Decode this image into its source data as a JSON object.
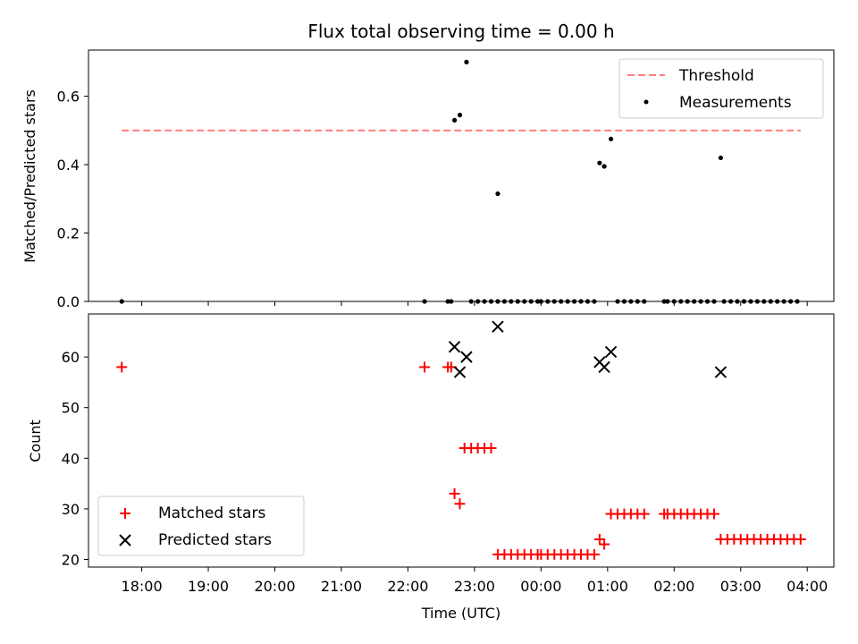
{
  "chart_data": [
    {
      "type": "scatter",
      "title": "Flux total observing time = 0.00 h",
      "ylabel": "Matched/Predicted stars",
      "xlabel": "",
      "ylim": [
        0,
        0.735
      ],
      "yticks": [
        0.0,
        0.2,
        0.4,
        0.6
      ],
      "ytick_labels": [
        "0.0",
        "0.2",
        "0.4",
        "0.6"
      ],
      "grid": false,
      "legend_position": "top-right",
      "threshold": {
        "name": "Threshold",
        "y": 0.5,
        "x_range": [
          17.7,
          27.9
        ],
        "color": "#ff7f7f",
        "style": "dashed"
      },
      "series": [
        {
          "name": "Measurements",
          "color": "#000000",
          "marker": "dot",
          "points": [
            [
              17.7,
              0.0
            ],
            [
              22.25,
              0.0
            ],
            [
              22.6,
              0.0
            ],
            [
              22.65,
              0.0
            ],
            [
              22.7,
              0.53
            ],
            [
              22.78,
              0.545
            ],
            [
              22.88,
              0.7
            ],
            [
              23.35,
              0.315
            ],
            [
              22.95,
              0.0
            ],
            [
              23.05,
              0.0
            ],
            [
              23.15,
              0.0
            ],
            [
              23.25,
              0.0
            ],
            [
              23.35,
              0.0
            ],
            [
              23.45,
              0.0
            ],
            [
              23.55,
              0.0
            ],
            [
              23.65,
              0.0
            ],
            [
              23.75,
              0.0
            ],
            [
              23.85,
              0.0
            ],
            [
              23.95,
              0.0
            ],
            [
              24.0,
              0.0
            ],
            [
              24.1,
              0.0
            ],
            [
              24.2,
              0.0
            ],
            [
              24.3,
              0.0
            ],
            [
              24.4,
              0.0
            ],
            [
              24.5,
              0.0
            ],
            [
              24.6,
              0.0
            ],
            [
              24.7,
              0.0
            ],
            [
              24.8,
              0.0
            ],
            [
              24.88,
              0.405
            ],
            [
              24.95,
              0.395
            ],
            [
              25.05,
              0.475
            ],
            [
              25.15,
              0.0
            ],
            [
              25.25,
              0.0
            ],
            [
              25.35,
              0.0
            ],
            [
              25.45,
              0.0
            ],
            [
              25.55,
              0.0
            ],
            [
              25.85,
              0.0
            ],
            [
              25.9,
              0.0
            ],
            [
              26.0,
              0.0
            ],
            [
              26.1,
              0.0
            ],
            [
              26.2,
              0.0
            ],
            [
              26.3,
              0.0
            ],
            [
              26.4,
              0.0
            ],
            [
              26.5,
              0.0
            ],
            [
              26.6,
              0.0
            ],
            [
              26.7,
              0.42
            ],
            [
              26.75,
              0.0
            ],
            [
              26.85,
              0.0
            ],
            [
              26.95,
              0.0
            ],
            [
              27.05,
              0.0
            ],
            [
              27.15,
              0.0
            ],
            [
              27.25,
              0.0
            ],
            [
              27.35,
              0.0
            ],
            [
              27.45,
              0.0
            ],
            [
              27.55,
              0.0
            ],
            [
              27.65,
              0.0
            ],
            [
              27.75,
              0.0
            ],
            [
              27.85,
              0.0
            ]
          ]
        }
      ]
    },
    {
      "type": "scatter",
      "title": "",
      "ylabel": "Count",
      "xlabel": "Time (UTC)",
      "ylim": [
        18.5,
        68.5
      ],
      "yticks": [
        20,
        30,
        40,
        50,
        60
      ],
      "ytick_labels": [
        "20",
        "30",
        "40",
        "50",
        "60"
      ],
      "xlim": [
        17.2,
        28.4
      ],
      "xticks": [
        18,
        19,
        20,
        21,
        22,
        23,
        24,
        25,
        26,
        27,
        28
      ],
      "xtick_labels": [
        "18:00",
        "19:00",
        "20:00",
        "21:00",
        "22:00",
        "23:00",
        "00:00",
        "01:00",
        "02:00",
        "03:00",
        "04:00"
      ],
      "grid": false,
      "legend_position": "bottom-left",
      "series": [
        {
          "name": "Matched stars",
          "color": "#ff0000",
          "marker": "plus",
          "points": [
            [
              17.7,
              58
            ],
            [
              22.25,
              58
            ],
            [
              22.6,
              58
            ],
            [
              22.65,
              58
            ],
            [
              22.7,
              33
            ],
            [
              22.78,
              31
            ],
            [
              22.85,
              42
            ],
            [
              22.95,
              42
            ],
            [
              23.05,
              42
            ],
            [
              23.15,
              42
            ],
            [
              23.25,
              42
            ],
            [
              23.35,
              21
            ],
            [
              23.45,
              21
            ],
            [
              23.55,
              21
            ],
            [
              23.65,
              21
            ],
            [
              23.75,
              21
            ],
            [
              23.85,
              21
            ],
            [
              23.95,
              21
            ],
            [
              24.0,
              21
            ],
            [
              24.1,
              21
            ],
            [
              24.2,
              21
            ],
            [
              24.3,
              21
            ],
            [
              24.4,
              21
            ],
            [
              24.5,
              21
            ],
            [
              24.6,
              21
            ],
            [
              24.7,
              21
            ],
            [
              24.8,
              21
            ],
            [
              24.88,
              24
            ],
            [
              24.95,
              23
            ],
            [
              25.05,
              29
            ],
            [
              25.15,
              29
            ],
            [
              25.25,
              29
            ],
            [
              25.35,
              29
            ],
            [
              25.45,
              29
            ],
            [
              25.55,
              29
            ],
            [
              25.85,
              29
            ],
            [
              25.9,
              29
            ],
            [
              26.0,
              29
            ],
            [
              26.1,
              29
            ],
            [
              26.2,
              29
            ],
            [
              26.3,
              29
            ],
            [
              26.4,
              29
            ],
            [
              26.5,
              29
            ],
            [
              26.6,
              29
            ],
            [
              26.7,
              24
            ],
            [
              26.8,
              24
            ],
            [
              26.9,
              24
            ],
            [
              27.0,
              24
            ],
            [
              27.1,
              24
            ],
            [
              27.2,
              24
            ],
            [
              27.3,
              24
            ],
            [
              27.4,
              24
            ],
            [
              27.5,
              24
            ],
            [
              27.6,
              24
            ],
            [
              27.7,
              24
            ],
            [
              27.8,
              24
            ],
            [
              27.9,
              24
            ]
          ]
        },
        {
          "name": "Predicted stars",
          "color": "#000000",
          "marker": "x",
          "points": [
            [
              22.7,
              62
            ],
            [
              22.78,
              57
            ],
            [
              22.88,
              60
            ],
            [
              23.35,
              66
            ],
            [
              24.88,
              59
            ],
            [
              24.95,
              58
            ],
            [
              25.05,
              61
            ],
            [
              26.7,
              57
            ]
          ]
        }
      ]
    }
  ]
}
